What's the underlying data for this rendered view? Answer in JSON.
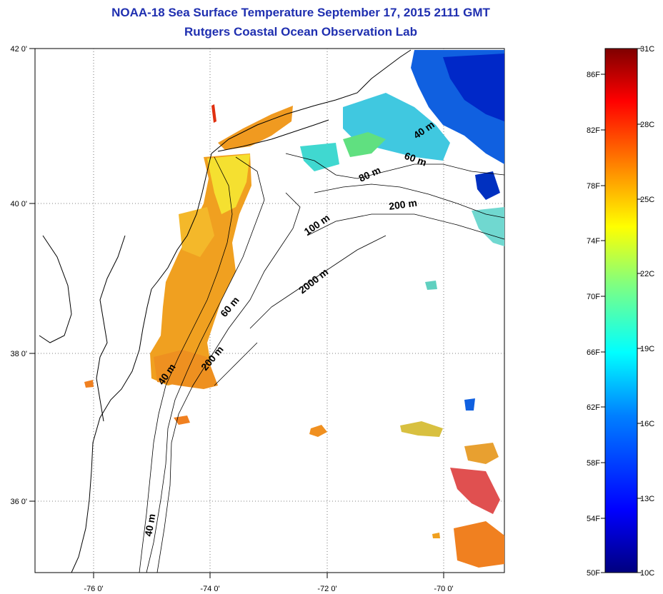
{
  "title": "NOAA-18 Sea Surface Temperature September 17, 2015 2111 GMT",
  "subtitle": "Rutgers Coastal Ocean Observation Lab",
  "map": {
    "lon_range": [
      -77,
      -69
    ],
    "lat_range": [
      35,
      42
    ],
    "lon_ticks": [
      "-76 0'",
      "-74 0'",
      "-72 0'",
      "-70 0'"
    ],
    "lat_ticks": [
      "42 0'",
      "40 0'",
      "38 0'",
      "36 0'"
    ],
    "gridlines": "dotted",
    "contour_labels": [
      "40 m",
      "60 m",
      "80 m",
      "200 m",
      "100 m",
      "2000 m",
      "60 m",
      "40 m",
      "200 m",
      "40 m"
    ]
  },
  "colorbar": {
    "fahrenheit_ticks": [
      "86F",
      "82F",
      "78F",
      "74F",
      "70F",
      "66F",
      "62F",
      "58F",
      "54F",
      "50F"
    ],
    "celsius_ticks": [
      "31C",
      "28C",
      "25C",
      "22C",
      "19C",
      "16C",
      "13C",
      "10C"
    ],
    "colors": [
      "#7f0000",
      "#ff0000",
      "#ff8000",
      "#ffff00",
      "#80ff80",
      "#00ffff",
      "#0080ff",
      "#0000ff",
      "#00007f"
    ]
  }
}
